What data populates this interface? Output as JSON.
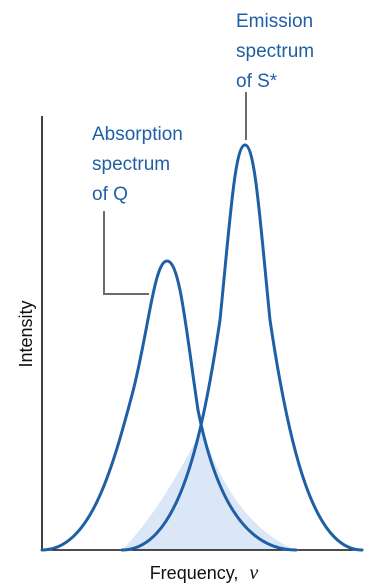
{
  "diagram": {
    "labels": {
      "emission": [
        "Emission",
        "spectrum",
        "of S*"
      ],
      "absorption": [
        "Absorption",
        "spectrum",
        "of Q"
      ]
    },
    "axes": {
      "y_label": "Intensity",
      "x_label": "Frequency,",
      "x_symbol": "ν"
    },
    "colors": {
      "curve": "#1f5fa6",
      "overlap_fill": "#dbe6f6",
      "axis": "#111111",
      "leader": "#6b6b6b"
    }
  }
}
